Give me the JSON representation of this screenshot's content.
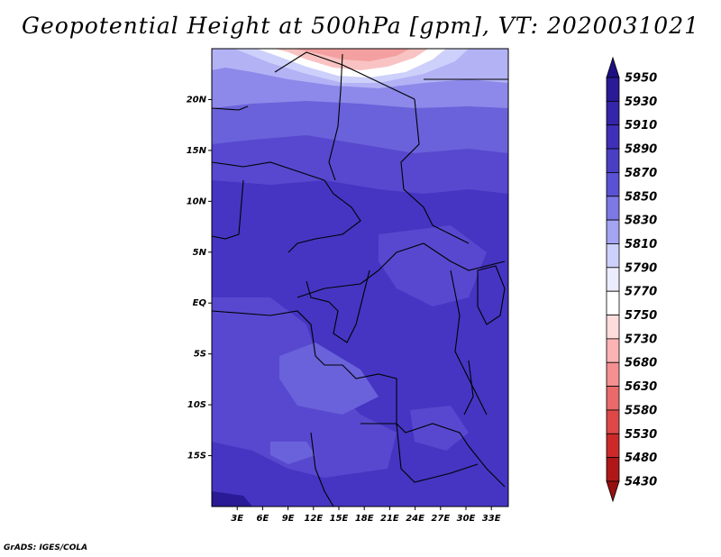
{
  "title": "Geopotential Height at 500hPa [gpm], VT: 2020031021",
  "credit": "GrADS: IGES/COLA",
  "map": {
    "lon_range": [
      0,
      35
    ],
    "lat_range": [
      -20,
      25
    ],
    "lon_ticks": [
      {
        "value": 3,
        "label": "3E"
      },
      {
        "value": 6,
        "label": "6E"
      },
      {
        "value": 9,
        "label": "9E"
      },
      {
        "value": 12,
        "label": "12E"
      },
      {
        "value": 15,
        "label": "15E"
      },
      {
        "value": 18,
        "label": "18E"
      },
      {
        "value": 21,
        "label": "21E"
      },
      {
        "value": 24,
        "label": "24E"
      },
      {
        "value": 27,
        "label": "27E"
      },
      {
        "value": 30,
        "label": "30E"
      },
      {
        "value": 33,
        "label": "33E"
      }
    ],
    "lat_ticks": [
      {
        "value": 20,
        "label": "20N"
      },
      {
        "value": 15,
        "label": "15N"
      },
      {
        "value": 10,
        "label": "10N"
      },
      {
        "value": 5,
        "label": "5N"
      },
      {
        "value": 0,
        "label": "EQ"
      },
      {
        "value": -5,
        "label": "5S"
      },
      {
        "value": -10,
        "label": "10S"
      },
      {
        "value": -15,
        "label": "15S"
      }
    ]
  },
  "colorbar": {
    "levels": [
      "5950",
      "5930",
      "5910",
      "5890",
      "5870",
      "5850",
      "5830",
      "5810",
      "5790",
      "5770",
      "5750",
      "5730",
      "5680",
      "5630",
      "5580",
      "5530",
      "5480",
      "5430"
    ],
    "colors": [
      "#1e0f82",
      "#2a1a96",
      "#3525a8",
      "#4030b8",
      "#4a3fc4",
      "#5a52d2",
      "#7c78e4",
      "#a4a4f2",
      "#cdd0fa",
      "#ececff",
      "#ffffff",
      "#ffdcdc",
      "#fbb3b3",
      "#f49090",
      "#e86a6a",
      "#de4848",
      "#cc2a2a",
      "#b01818",
      "#961010"
    ]
  },
  "field_colors": {
    "deep": "#4535c2",
    "mid": "#5848cf",
    "light": "#6a62da",
    "lighter": "#8c89ea",
    "pale": "#b2b2f5",
    "white": "#ffffff",
    "pink": "#f9c3c3",
    "salmon": "#f4a0a0"
  }
}
